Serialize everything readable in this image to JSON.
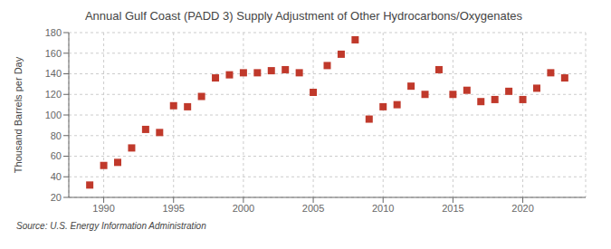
{
  "chart_data": {
    "type": "scatter",
    "title": "Annual Gulf Coast (PADD 3) Supply Adjustment of Other Hydrocarbons/Oxygenates",
    "ylabel": "Thousand Barrels per Day",
    "annotation": "Source: U.S. Energy Information Administration",
    "x": [
      1989,
      1990,
      1991,
      1992,
      1993,
      1994,
      1995,
      1996,
      1997,
      1998,
      1999,
      2000,
      2001,
      2002,
      2003,
      2004,
      2005,
      2006,
      2007,
      2008,
      2009,
      2010,
      2011,
      2012,
      2013,
      2014,
      2015,
      2016,
      2017,
      2018,
      2019,
      2020,
      2021,
      2022,
      2023
    ],
    "values": [
      32,
      51,
      54,
      68,
      86,
      83,
      109,
      108,
      118,
      136,
      139,
      141,
      141,
      143,
      144,
      141,
      122,
      148,
      159,
      173,
      96,
      108,
      110,
      128,
      120,
      144,
      120,
      124,
      113,
      115,
      123,
      115,
      126,
      141,
      136
    ],
    "color": "#c0392b",
    "marker": "square",
    "xlim": [
      1987.5,
      2024.5
    ],
    "xticks": [
      1990,
      1995,
      2000,
      2005,
      2010,
      2015,
      2020
    ],
    "ylim": [
      20,
      180
    ],
    "yticks": [
      20,
      40,
      60,
      80,
      100,
      120,
      140,
      160,
      180
    ],
    "grid": true
  }
}
